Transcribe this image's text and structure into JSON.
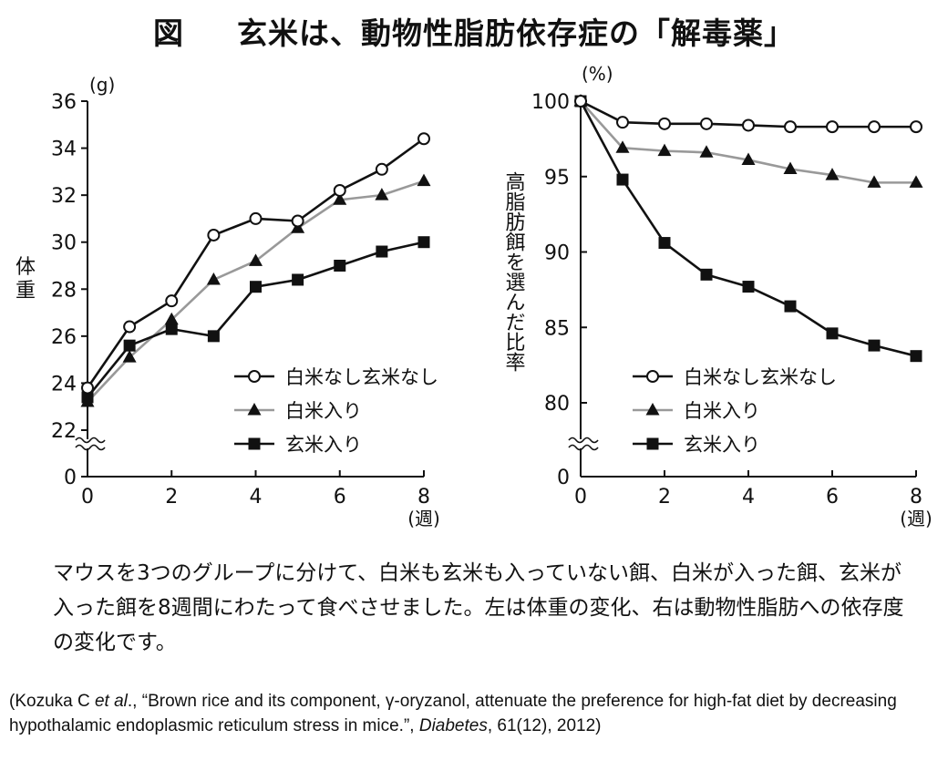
{
  "title": {
    "label": "図",
    "text": "玄米は、動物性脂肪依存症の「解毒薬」"
  },
  "chart_data": [
    {
      "type": "line",
      "ylabel": "体重",
      "yunit": "(g)",
      "xunit": "(週)",
      "x": [
        0,
        1,
        2,
        3,
        4,
        5,
        6,
        7,
        8
      ],
      "xticks": [
        0,
        2,
        4,
        6,
        8
      ],
      "yticks": [
        22,
        24,
        26,
        28,
        30,
        32,
        34,
        36
      ],
      "zero_tick": "0",
      "axis_break": true,
      "ylim": [
        22,
        36
      ],
      "xlim": [
        0,
        8
      ],
      "grid": false,
      "legend_position": "bottom-right",
      "series": [
        {
          "name": "白米なし玄米なし",
          "marker": "open-circle",
          "color": "#111111",
          "values": [
            23.8,
            26.4,
            27.5,
            30.3,
            31.0,
            30.9,
            32.2,
            33.1,
            34.4
          ]
        },
        {
          "name": "白米入り",
          "marker": "triangle",
          "color": "#999999",
          "values": [
            23.2,
            25.1,
            26.7,
            28.4,
            29.2,
            30.6,
            31.8,
            32.0,
            32.6
          ]
        },
        {
          "name": "玄米入り",
          "marker": "square",
          "color": "#111111",
          "values": [
            23.4,
            25.6,
            26.3,
            26.0,
            28.1,
            28.4,
            29.0,
            29.6,
            30.0
          ]
        }
      ]
    },
    {
      "type": "line",
      "ylabel": "高脂肪餌を選んだ比率",
      "yunit": "(%)",
      "xunit": "(週)",
      "x": [
        0,
        1,
        2,
        3,
        4,
        5,
        6,
        7,
        8
      ],
      "xticks": [
        0,
        2,
        4,
        6,
        8
      ],
      "yticks": [
        80,
        85,
        90,
        95,
        100
      ],
      "zero_tick": "0",
      "axis_break": true,
      "ylim": [
        80,
        100
      ],
      "xlim": [
        0,
        8
      ],
      "grid": false,
      "legend_position": "bottom-right",
      "series": [
        {
          "name": "白米なし玄米なし",
          "marker": "open-circle",
          "color": "#111111",
          "values": [
            100,
            98.6,
            98.5,
            98.5,
            98.4,
            98.3,
            98.3,
            98.3,
            98.3
          ]
        },
        {
          "name": "白米入り",
          "marker": "triangle",
          "color": "#999999",
          "values": [
            100,
            96.9,
            96.7,
            96.6,
            96.1,
            95.5,
            95.1,
            94.6,
            94.6
          ]
        },
        {
          "name": "玄米入り",
          "marker": "square",
          "color": "#111111",
          "values": [
            100,
            94.8,
            90.6,
            88.5,
            87.7,
            86.4,
            84.6,
            83.8,
            83.1
          ]
        }
      ]
    }
  ],
  "caption": "マウスを3つのグループに分けて、白米も玄米も入っていない餌、白米が入った餌、玄米が入った餌を8週間にわたって食べさせました。左は体重の変化、右は動物性脂肪への依存度の変化です。",
  "citation": {
    "part1": "(Kozuka C ",
    "italic1": "et al",
    "part2": "., “Brown rice and its component, γ-oryzanol, attenuate the preference for high-fat diet by decreasing hypothalamic endoplasmic reticulum stress in mice.”, ",
    "italic2": "Diabetes",
    "part3": ", 61(12), 2012)"
  }
}
